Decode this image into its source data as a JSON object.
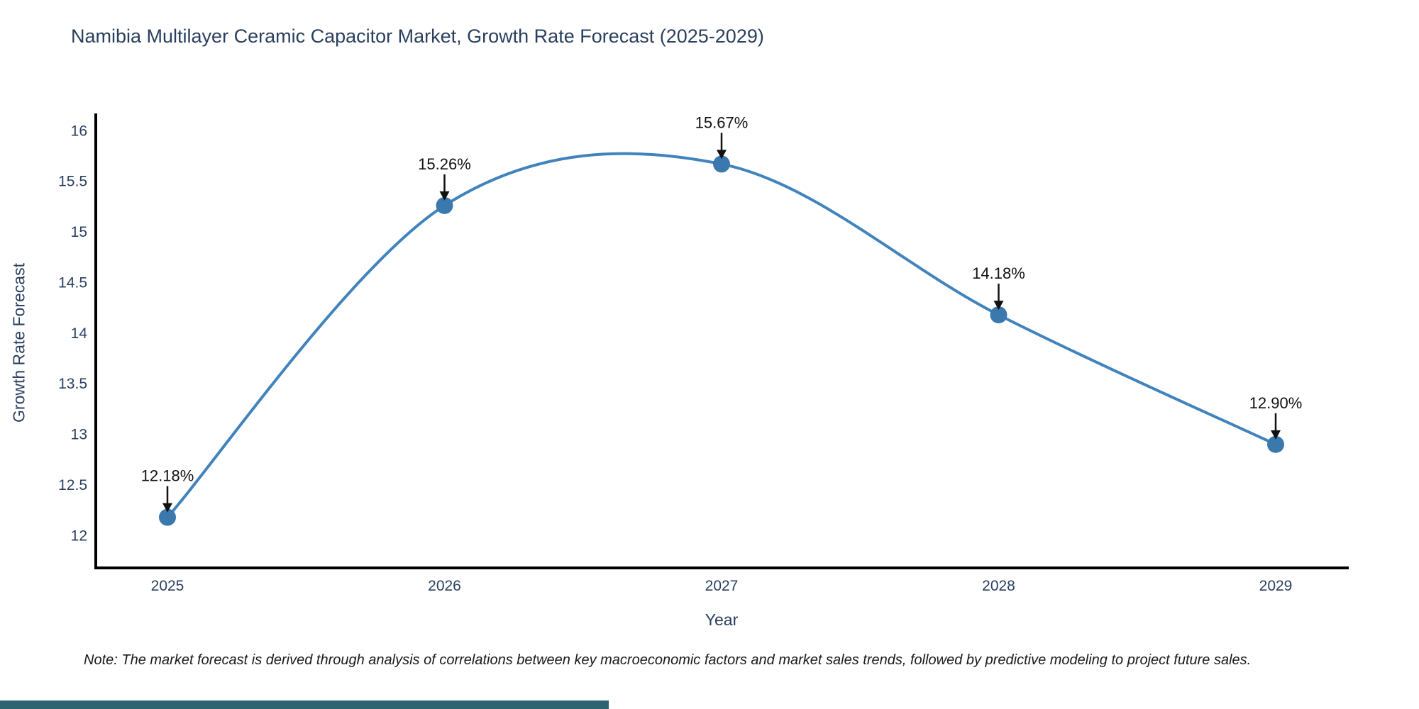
{
  "page": {
    "note": "Note: The market forecast is derived through analysis of correlations between key macroeconomic factors and market sales trends, followed by predictive modeling to project future sales.",
    "accent_bar_color": "#2e6370"
  },
  "chart_data": {
    "type": "line",
    "curve": "spline",
    "title": "Namibia Multilayer Ceramic Capacitor Market, Growth Rate Forecast (2025-2029)",
    "xlabel": "Year",
    "ylabel": "Growth Rate Forecast",
    "x": [
      2025,
      2026,
      2027,
      2028,
      2029
    ],
    "series": [
      {
        "name": "Growth Rate Forecast",
        "values": [
          12.18,
          15.26,
          15.67,
          14.18,
          12.9
        ],
        "labels": [
          "12.18%",
          "15.26%",
          "15.67%",
          "14.18%",
          "12.90%"
        ]
      }
    ],
    "xtick_labels": [
      "2025",
      "2026",
      "2027",
      "2028",
      "2029"
    ],
    "ytick_values": [
      12,
      12.5,
      13,
      13.5,
      14,
      14.5,
      15,
      15.5,
      16
    ],
    "ytick_labels": [
      "12",
      "12.5",
      "13",
      "13.5",
      "14",
      "14.5",
      "15",
      "15.5",
      "16"
    ],
    "ylim": [
      11.68,
      16.17
    ],
    "grid": false,
    "legend": false,
    "line_color": "#4183bd",
    "marker_color": "#3a78ae",
    "annotation_color": "#111111",
    "axis_color": "#000000",
    "text_color": "#2a3f5f"
  }
}
